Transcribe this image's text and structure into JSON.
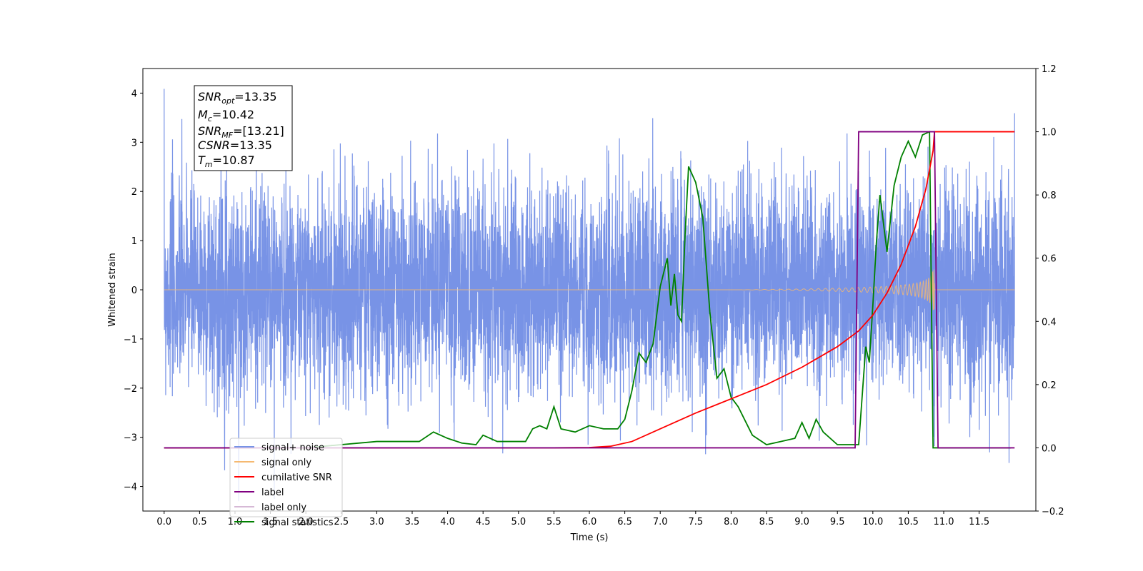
{
  "chart_data": {
    "type": "line",
    "xlabel": "Time (s)",
    "ylabel": "Whitened strain",
    "x_ticks": [
      "0.0",
      "0.5",
      "1.0",
      "1.5",
      "2.0",
      "2.5",
      "3.0",
      "3.5",
      "4.0",
      "4.5",
      "5.0",
      "5.5",
      "6.0",
      "6.5",
      "7.0",
      "7.5",
      "8.0",
      "8.5",
      "9.0",
      "9.5",
      "10.0",
      "10.5",
      "11.0",
      "11.5"
    ],
    "y_ticks_left": [
      "−4",
      "−3",
      "−2",
      "−1",
      "0",
      "1",
      "2",
      "3",
      "4"
    ],
    "y_ticks_right": [
      "−0.2",
      "0.0",
      "0.2",
      "0.4",
      "0.6",
      "0.8",
      "1.0",
      "1.2"
    ],
    "xlim": [
      -0.3,
      12.3
    ],
    "ylim_left": [
      -4.5,
      4.5
    ],
    "ylim_right": [
      -0.2,
      1.2
    ],
    "legend_position": "lower-left",
    "annotation_box": [
      {
        "base": "SNR",
        "sub": "opt",
        "value": "=13.35"
      },
      {
        "base": "M",
        "sub": "c",
        "value": "=10.42"
      },
      {
        "base": "SNR",
        "sub": "MF",
        "value": "=[13.21]"
      },
      {
        "base": "CSNR",
        "sub": "",
        "value": "=13.35"
      },
      {
        "base": "T",
        "sub": "m",
        "value": "=10.87"
      }
    ],
    "series": [
      {
        "name": "signal+ noise",
        "color": "#7893e6",
        "axis": "left",
        "description_range": [
          0.0,
          12.0
        ]
      },
      {
        "name": "signal only",
        "color": "#f5b971",
        "axis": "left",
        "merger_time": 10.87
      },
      {
        "name": "cumilative SNR",
        "color": "#ff0000",
        "axis": "right",
        "x": [
          0.0,
          5.5,
          6.0,
          6.3,
          6.6,
          7.0,
          7.5,
          8.0,
          8.5,
          9.0,
          9.5,
          9.8,
          10.0,
          10.2,
          10.4,
          10.6,
          10.75,
          10.85,
          10.87,
          12.0
        ],
        "y": [
          0.0,
          0.0,
          0.001,
          0.005,
          0.02,
          0.06,
          0.11,
          0.155,
          0.2,
          0.255,
          0.32,
          0.37,
          0.42,
          0.49,
          0.58,
          0.7,
          0.82,
          0.94,
          1.0,
          1.0
        ]
      },
      {
        "name": "label",
        "color": "#800080",
        "axis": "right",
        "x": [
          0.0,
          9.75,
          9.8,
          10.87,
          10.92,
          12.0
        ],
        "y": [
          0.0,
          0.0,
          1.0,
          1.0,
          0.0,
          0.0
        ]
      },
      {
        "name": "label only",
        "color": "#c8a2c8",
        "axis": "right",
        "x": [],
        "y": []
      },
      {
        "name": "signal statistics",
        "color": "#008000",
        "axis": "right",
        "x": [
          0.0,
          2.0,
          2.5,
          3.0,
          3.3,
          3.6,
          3.8,
          4.0,
          4.2,
          4.4,
          4.5,
          4.7,
          4.9,
          5.1,
          5.2,
          5.3,
          5.4,
          5.5,
          5.6,
          5.8,
          6.0,
          6.2,
          6.4,
          6.5,
          6.6,
          6.7,
          6.8,
          6.9,
          7.0,
          7.1,
          7.15,
          7.2,
          7.25,
          7.3,
          7.35,
          7.4,
          7.5,
          7.6,
          7.7,
          7.8,
          7.9,
          8.0,
          8.1,
          8.3,
          8.5,
          8.7,
          8.9,
          9.0,
          9.1,
          9.2,
          9.3,
          9.5,
          9.7,
          9.8,
          9.9,
          9.95,
          10.0,
          10.05,
          10.1,
          10.2,
          10.3,
          10.4,
          10.5,
          10.6,
          10.7,
          10.8,
          10.85,
          10.9,
          11.0,
          11.5,
          11.95
        ],
        "y": [
          0.0,
          0.0,
          0.01,
          0.02,
          0.02,
          0.02,
          0.05,
          0.03,
          0.015,
          0.01,
          0.04,
          0.02,
          0.02,
          0.02,
          0.06,
          0.07,
          0.06,
          0.13,
          0.06,
          0.05,
          0.07,
          0.06,
          0.06,
          0.09,
          0.18,
          0.3,
          0.27,
          0.33,
          0.51,
          0.6,
          0.45,
          0.55,
          0.42,
          0.4,
          0.67,
          0.89,
          0.84,
          0.73,
          0.43,
          0.22,
          0.25,
          0.16,
          0.13,
          0.04,
          0.01,
          0.02,
          0.03,
          0.08,
          0.03,
          0.09,
          0.05,
          0.01,
          0.01,
          0.01,
          0.32,
          0.27,
          0.45,
          0.65,
          0.8,
          0.62,
          0.83,
          0.92,
          0.97,
          0.92,
          0.99,
          1.0,
          0.0,
          0.0,
          0.0,
          0.0,
          0.0
        ]
      }
    ]
  }
}
